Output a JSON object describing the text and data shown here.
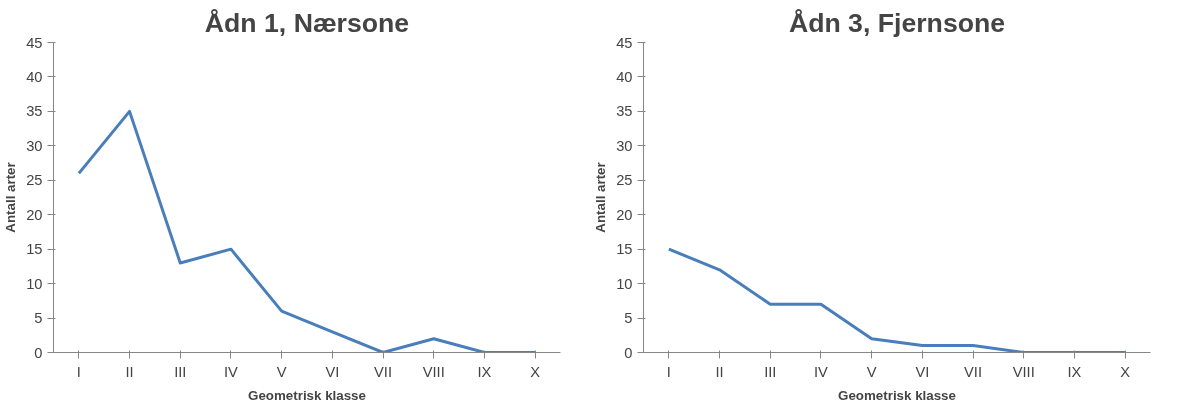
{
  "chart_data": [
    {
      "type": "line",
      "title": "Ådn 1, Nærsone",
      "xlabel": "Geometrisk klasse",
      "ylabel": "Antall arter",
      "categories": [
        "I",
        "II",
        "III",
        "IV",
        "V",
        "VI",
        "VII",
        "VIII",
        "IX",
        "X"
      ],
      "series": [
        {
          "color": "#4a7ebb",
          "values": [
            26,
            35,
            13,
            15,
            6,
            3,
            0,
            2,
            0,
            0
          ]
        }
      ],
      "ylim": [
        0,
        45
      ],
      "yticks": [
        0,
        5,
        10,
        15,
        20,
        25,
        30,
        35,
        40,
        45
      ],
      "grid": false,
      "marker": "none",
      "line_style": "solid"
    },
    {
      "type": "line",
      "title": "Ådn 3, Fjernsone",
      "xlabel": "Geometrisk klasse",
      "ylabel": "Antall arter",
      "categories": [
        "I",
        "II",
        "III",
        "IV",
        "V",
        "VI",
        "VII",
        "VIII",
        "IX",
        "X"
      ],
      "series": [
        {
          "color": "#4a7ebb",
          "values": [
            15,
            12,
            7,
            7,
            2,
            1,
            1,
            0,
            0,
            0
          ]
        }
      ],
      "ylim": [
        0,
        45
      ],
      "yticks": [
        0,
        5,
        10,
        15,
        20,
        25,
        30,
        35,
        40,
        45
      ],
      "grid": false,
      "marker": "none",
      "line_style": "solid"
    }
  ]
}
